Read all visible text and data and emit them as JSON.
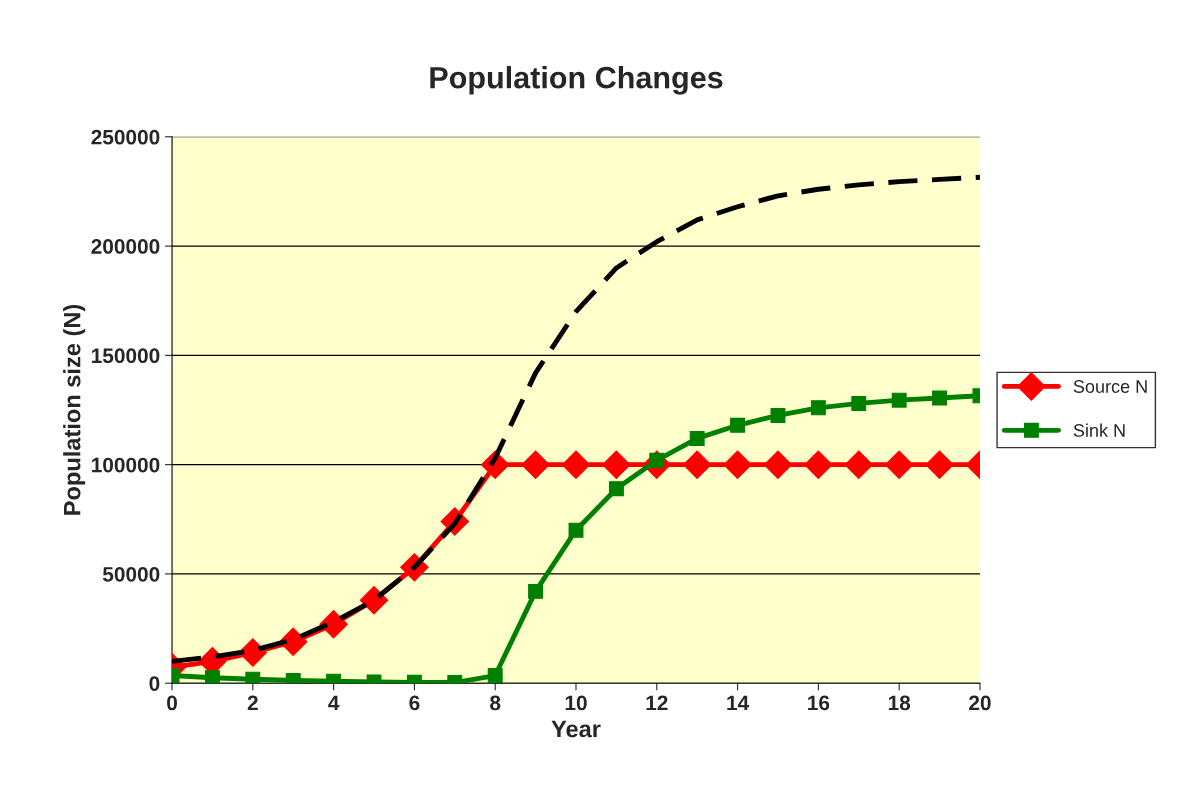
{
  "chart_data": {
    "type": "line",
    "title": "Population Changes",
    "xlabel": "Year",
    "ylabel": "Population size (N)",
    "x": [
      0,
      1,
      2,
      3,
      4,
      5,
      6,
      7,
      8,
      9,
      10,
      11,
      12,
      13,
      14,
      15,
      16,
      17,
      18,
      19,
      20
    ],
    "xlim": [
      0,
      20
    ],
    "xticks": [
      0,
      2,
      4,
      6,
      8,
      10,
      12,
      14,
      16,
      18,
      20
    ],
    "ylim": [
      0,
      250000
    ],
    "yticks": [
      0,
      50000,
      100000,
      150000,
      200000,
      250000
    ],
    "grid": "y",
    "legend": "right",
    "series": [
      {
        "name": "Source N",
        "color": "#ff0000",
        "marker": "diamond",
        "line_style": "solid",
        "values": [
          7300,
          10000,
          14000,
          19000,
          27000,
          38000,
          53000,
          74000,
          100000,
          100000,
          100000,
          100000,
          100000,
          100000,
          100000,
          100000,
          100000,
          100000,
          100000,
          100000,
          100000
        ]
      },
      {
        "name": "Sink N",
        "color": "#008000",
        "marker": "square",
        "line_style": "solid",
        "values": [
          3500,
          2500,
          1800,
          1300,
          900,
          600,
          400,
          300,
          3500,
          42000,
          70000,
          89000,
          102000,
          112000,
          118000,
          122500,
          126000,
          128000,
          129500,
          130500,
          131500
        ]
      },
      {
        "color": "#000000",
        "marker": "none",
        "line_style": "dashed",
        "values": [
          10000,
          12000,
          15000,
          20000,
          28000,
          38000,
          53000,
          73000,
          103000,
          142000,
          170000,
          190000,
          202000,
          212000,
          218000,
          223000,
          226000,
          228000,
          229500,
          230500,
          231500
        ]
      }
    ]
  }
}
